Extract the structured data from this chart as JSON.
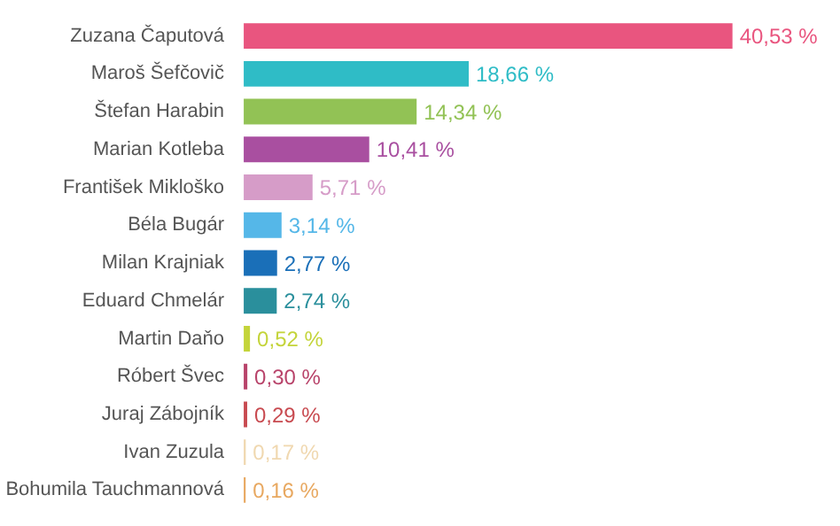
{
  "chart_data": {
    "type": "bar",
    "orientation": "horizontal",
    "categories": [
      "Zuzana Čaputová",
      "Maroš Šefčovič",
      "Štefan Harabin",
      "Marian Kotleba",
      "František Mikloško",
      "Béla Bugár",
      "Milan Krajniak",
      "Eduard Chmelár",
      "Martin Daňo",
      "Róbert Švec",
      "Juraj Zábojník",
      "Ivan Zuzula",
      "Bohumila Tauchmannová"
    ],
    "values": [
      40.53,
      18.66,
      14.34,
      10.41,
      5.71,
      3.14,
      2.77,
      2.74,
      0.52,
      0.3,
      0.29,
      0.17,
      0.16
    ],
    "value_labels": [
      "40,53 %",
      "18,66 %",
      "14,34 %",
      "10,41 %",
      "5,71 %",
      "3,14 %",
      "2,77 %",
      "2,74 %",
      "0,52 %",
      "0,30 %",
      "0,29 %",
      "0,17 %",
      "0,16 %"
    ],
    "colors": [
      "#e9557f",
      "#2fbcc6",
      "#92c255",
      "#a94fa0",
      "#d69cc8",
      "#55b7e8",
      "#1a6fb8",
      "#2a8f9c",
      "#c4d43a",
      "#b8436a",
      "#c84a50",
      "#f0d8b0",
      "#e8a860"
    ],
    "tick_labels": "y"
  }
}
